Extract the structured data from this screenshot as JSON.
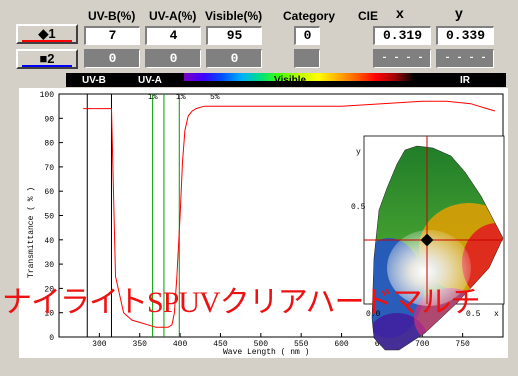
{
  "header": {
    "uvb": "UV-B(%)",
    "uva": "UV-A(%)",
    "visible": "Visible(%)",
    "category": "Category",
    "cie": "CIE",
    "x": "x",
    "y": "y"
  },
  "samples": [
    {
      "label": "◆1",
      "bar_color": "#ff0000",
      "uvb": "7",
      "uva": "4",
      "visible": "95",
      "category": "0",
      "cie_x": "0.319",
      "cie_y": "0.339"
    },
    {
      "label": "■2",
      "bar_color": "#0000ff",
      "uvb": "0",
      "uva": "0",
      "visible": "0",
      "category": "",
      "cie_x": "- - - -",
      "cie_y": "- - - -"
    }
  ],
  "spectrum_bar": {
    "uvb": "UV-B",
    "uva": "UV-A",
    "visible": "Visible",
    "ir": "IR"
  },
  "markers": {
    "m1": "1%",
    "m2": "1%",
    "m3": "5%"
  },
  "overlay_title": "ナイライトSPUVクリアハードマルチ",
  "chart_data": {
    "type": "line",
    "xlabel": "Wave Length ( nm )",
    "ylabel": "Transmittance ( % )",
    "xlim": [
      250,
      800
    ],
    "ylim": [
      0,
      100
    ],
    "x_ticks": [
      300,
      350,
      400,
      450,
      500,
      550,
      600,
      650,
      700,
      750
    ],
    "y_ticks": [
      0,
      10,
      20,
      30,
      40,
      50,
      60,
      70,
      80,
      90,
      100
    ],
    "series": [
      {
        "color": "#ff0000",
        "x": [
          280,
          290,
          300,
          310,
          315,
          320,
          330,
          340,
          350,
          360,
          370,
          380,
          385,
          390,
          393,
          396,
          400,
          403,
          406,
          410,
          415,
          420,
          430,
          450,
          500,
          550,
          600,
          650,
          700,
          730,
          760,
          780,
          790
        ],
        "y": [
          94,
          94,
          94,
          94,
          94,
          25,
          10,
          7,
          6,
          5,
          4,
          4,
          4,
          5,
          10,
          25,
          50,
          72,
          85,
          91,
          93,
          94,
          95,
          95,
          95,
          95,
          95,
          96,
          97,
          97,
          96,
          94,
          93
        ]
      }
    ],
    "vertical_lines_black": [
      285,
      315
    ],
    "vertical_lines_green": [
      366,
      380,
      399
    ],
    "inset": {
      "type": "cie-chromaticity",
      "x_ticks": [
        "0.0",
        "0.5",
        "x"
      ],
      "y_ticks": [
        "y",
        "0.5"
      ],
      "point": {
        "x": 0.319,
        "y": 0.339
      }
    }
  }
}
